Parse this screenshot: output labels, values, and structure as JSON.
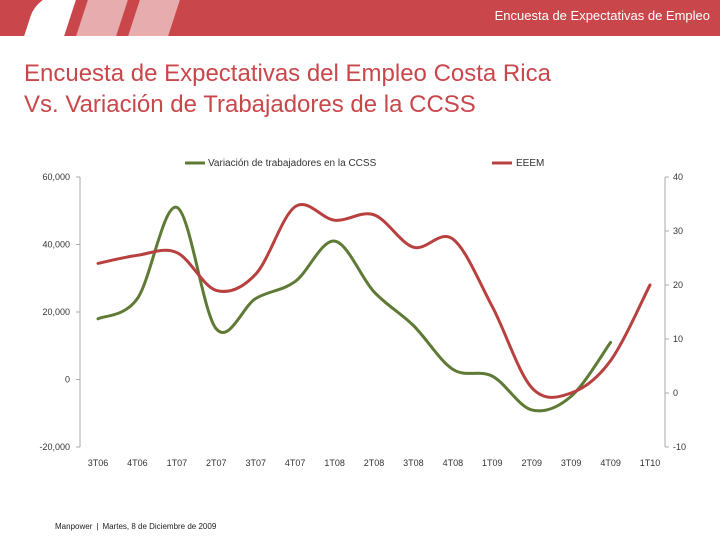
{
  "header": {
    "title": "Encuesta de Expectativas de Empleo"
  },
  "slide": {
    "title_line1": "Encuesta de Expectativas del Empleo Costa Rica",
    "title_line2": "Vs. Variación de Trabajadores de la CCSS"
  },
  "footer": {
    "company": "Manpower",
    "separator": "|",
    "date": "Martes, 8 de Diciembre de 2009"
  },
  "colors": {
    "brand": "#c9474b",
    "ccss_line": "#5e7a35",
    "eeem_line": "#b8413f",
    "axis": "#aaaaaa"
  },
  "chart_data": {
    "type": "line",
    "categories": [
      "3T06",
      "4T06",
      "1T07",
      "2T07",
      "3T07",
      "4T07",
      "1T08",
      "2T08",
      "3T08",
      "4T08",
      "1T09",
      "2T09",
      "3T09",
      "4T09",
      "1T10"
    ],
    "series": [
      {
        "name": "Variación de trabajadores en la CCSS",
        "axis": "left",
        "values": [
          18000,
          24000,
          51000,
          15000,
          24000,
          29000,
          41000,
          26000,
          16000,
          3000,
          1000,
          -9000,
          -5000,
          11000,
          null
        ]
      },
      {
        "name": "EEEM",
        "axis": "right",
        "values": [
          24,
          25.5,
          26,
          19,
          22,
          34.5,
          32,
          33,
          27,
          28.5,
          16,
          1,
          0,
          6,
          20
        ]
      }
    ],
    "y_left": {
      "ylim": [
        -20000,
        60000
      ],
      "ticks": [
        -20000,
        0,
        20000,
        40000,
        60000
      ],
      "tick_labels": [
        "-20,000",
        "0",
        "20,000",
        "40,000",
        "60,000"
      ]
    },
    "y_right": {
      "ylim": [
        -10,
        40
      ],
      "ticks": [
        -10,
        0,
        10,
        20,
        30,
        40
      ],
      "tick_labels": [
        "-10",
        "0",
        "10",
        "20",
        "30",
        "40"
      ]
    },
    "legend_position": "top",
    "grid": false
  }
}
